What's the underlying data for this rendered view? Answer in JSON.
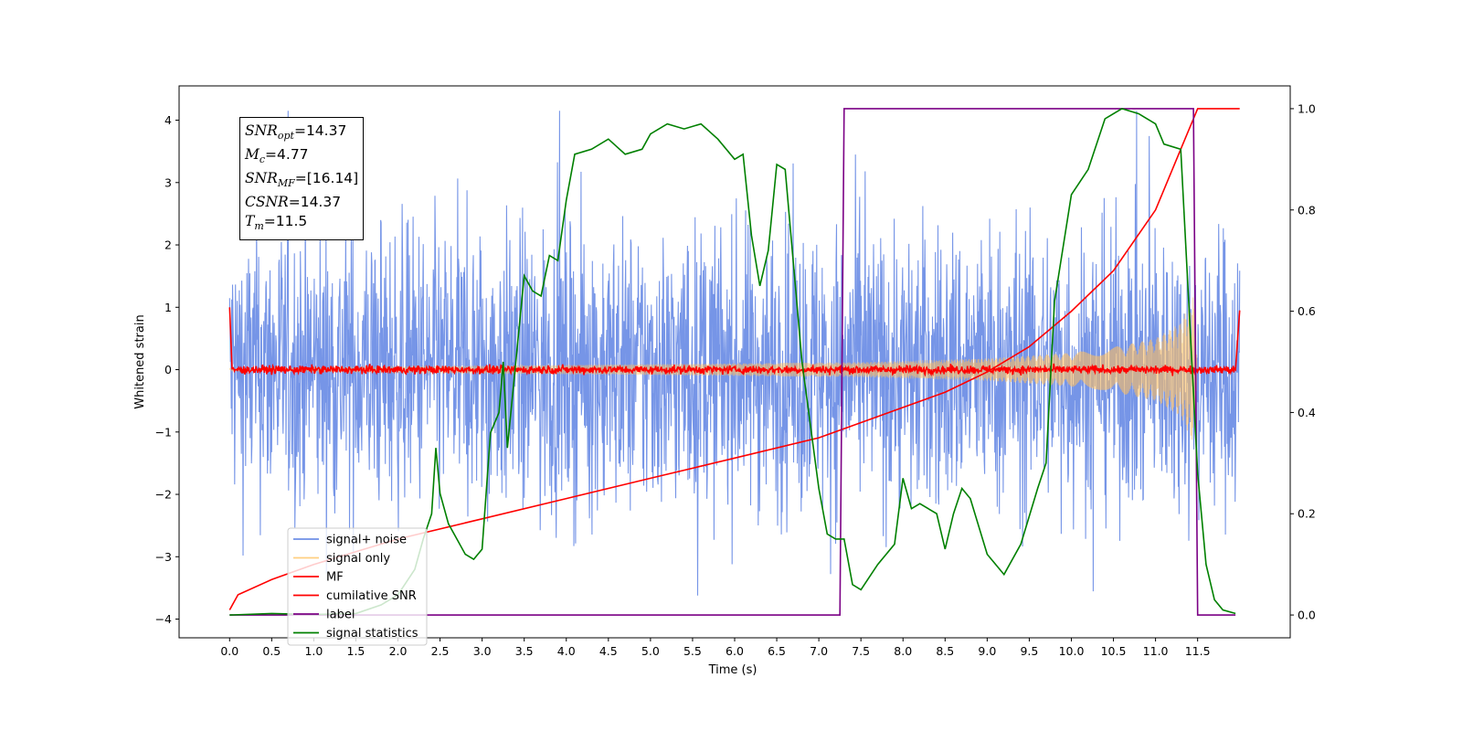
{
  "chart_data": {
    "type": "line",
    "xlabel": "Time (s)",
    "ylabel": "Whitened strain",
    "xlim": [
      -0.6,
      12.6
    ],
    "ylim": [
      -4.3,
      4.55
    ],
    "y2lim": [
      -0.045,
      1.045
    ],
    "xticks": [
      "0.0",
      "0.5",
      "1.0",
      "1.5",
      "2.0",
      "2.5",
      "3.0",
      "3.5",
      "4.0",
      "4.5",
      "5.0",
      "5.5",
      "6.0",
      "6.5",
      "7.0",
      "7.5",
      "8.0",
      "8.5",
      "9.0",
      "9.5",
      "10.0",
      "10.5",
      "11.0",
      "11.5"
    ],
    "yticks": [
      "−4",
      "−3",
      "−2",
      "−1",
      "0",
      "1",
      "2",
      "3",
      "4"
    ],
    "y2ticks": [
      "0.0",
      "0.2",
      "0.4",
      "0.6",
      "0.8",
      "1.0"
    ],
    "annotation": {
      "snr_opt": "SNR",
      "snr_opt_sub": "opt",
      "snr_opt_val": "=14.37",
      "mc": "M",
      "mc_sub": "c",
      "mc_val": "=4.77",
      "snr_mf": "SNR",
      "snr_mf_sub": "MF",
      "snr_mf_val": "=[16.14]",
      "csnr": "CSNR",
      "csnr_val": "=14.37",
      "tm": "T",
      "tm_sub": "m",
      "tm_val": "=11.5"
    },
    "legend_position": "lower-left",
    "series": [
      {
        "name": "signal+ noise",
        "color": "#6f8fe6",
        "kind": "noise",
        "envelope": [
          [
            0.0,
            2.0
          ],
          [
            12.0,
            2.0
          ]
        ]
      },
      {
        "name": "signal only",
        "color": "#ffbf60",
        "kind": "chirp",
        "envelope": [
          [
            0.0,
            0.02
          ],
          [
            7.5,
            0.12
          ],
          [
            9.0,
            0.18
          ],
          [
            10.0,
            0.27
          ],
          [
            10.5,
            0.36
          ],
          [
            11.0,
            0.5
          ],
          [
            11.3,
            0.75
          ],
          [
            11.45,
            1.2
          ],
          [
            11.5,
            0.0
          ]
        ]
      },
      {
        "name": "MF",
        "color": "#ff0000",
        "kind": "mf",
        "points": [
          [
            0.0,
            1.0
          ],
          [
            0.05,
            0.0
          ],
          [
            11.95,
            0.0
          ],
          [
            12.0,
            0.95
          ]
        ]
      },
      {
        "name": "cumilative SNR",
        "color": "#ff0000",
        "axis": "right",
        "points": [
          [
            0.0,
            0.01
          ],
          [
            0.1,
            0.04
          ],
          [
            0.5,
            0.07
          ],
          [
            1.0,
            0.1
          ],
          [
            2.0,
            0.15
          ],
          [
            3.0,
            0.19
          ],
          [
            4.0,
            0.23
          ],
          [
            5.0,
            0.27
          ],
          [
            6.0,
            0.31
          ],
          [
            7.0,
            0.35
          ],
          [
            7.5,
            0.38
          ],
          [
            8.0,
            0.41
          ],
          [
            8.5,
            0.44
          ],
          [
            9.0,
            0.48
          ],
          [
            9.5,
            0.53
          ],
          [
            10.0,
            0.6
          ],
          [
            10.5,
            0.68
          ],
          [
            11.0,
            0.8
          ],
          [
            11.3,
            0.92
          ],
          [
            11.45,
            0.98
          ],
          [
            11.5,
            1.0
          ],
          [
            12.0,
            1.0
          ]
        ]
      },
      {
        "name": "label",
        "color": "#7b0085",
        "axis": "right",
        "points": [
          [
            0.0,
            0.0
          ],
          [
            7.25,
            0.0
          ],
          [
            7.3,
            1.0
          ],
          [
            11.45,
            1.0
          ],
          [
            11.5,
            0.0
          ],
          [
            11.95,
            0.0
          ]
        ]
      },
      {
        "name": "signal statistics",
        "color": "#008000",
        "axis": "right",
        "points": [
          [
            0.0,
            0.0
          ],
          [
            0.5,
            0.003
          ],
          [
            1.0,
            0.001
          ],
          [
            1.5,
            0.003
          ],
          [
            1.8,
            0.02
          ],
          [
            2.0,
            0.04
          ],
          [
            2.2,
            0.09
          ],
          [
            2.3,
            0.15
          ],
          [
            2.4,
            0.2
          ],
          [
            2.45,
            0.33
          ],
          [
            2.5,
            0.24
          ],
          [
            2.6,
            0.18
          ],
          [
            2.7,
            0.15
          ],
          [
            2.8,
            0.12
          ],
          [
            2.9,
            0.11
          ],
          [
            3.0,
            0.13
          ],
          [
            3.1,
            0.36
          ],
          [
            3.2,
            0.4
          ],
          [
            3.25,
            0.5
          ],
          [
            3.3,
            0.33
          ],
          [
            3.5,
            0.67
          ],
          [
            3.6,
            0.64
          ],
          [
            3.7,
            0.63
          ],
          [
            3.8,
            0.71
          ],
          [
            3.9,
            0.7
          ],
          [
            4.0,
            0.82
          ],
          [
            4.1,
            0.91
          ],
          [
            4.3,
            0.92
          ],
          [
            4.5,
            0.94
          ],
          [
            4.7,
            0.91
          ],
          [
            4.9,
            0.92
          ],
          [
            5.0,
            0.95
          ],
          [
            5.2,
            0.97
          ],
          [
            5.4,
            0.96
          ],
          [
            5.6,
            0.97
          ],
          [
            5.8,
            0.94
          ],
          [
            6.0,
            0.9
          ],
          [
            6.1,
            0.91
          ],
          [
            6.2,
            0.75
          ],
          [
            6.3,
            0.65
          ],
          [
            6.4,
            0.72
          ],
          [
            6.5,
            0.89
          ],
          [
            6.6,
            0.88
          ],
          [
            6.8,
            0.5
          ],
          [
            7.0,
            0.25
          ],
          [
            7.1,
            0.16
          ],
          [
            7.2,
            0.15
          ],
          [
            7.3,
            0.15
          ],
          [
            7.4,
            0.06
          ],
          [
            7.5,
            0.05
          ],
          [
            7.7,
            0.1
          ],
          [
            7.9,
            0.14
          ],
          [
            8.0,
            0.27
          ],
          [
            8.1,
            0.21
          ],
          [
            8.2,
            0.22
          ],
          [
            8.4,
            0.2
          ],
          [
            8.5,
            0.13
          ],
          [
            8.6,
            0.2
          ],
          [
            8.7,
            0.25
          ],
          [
            8.8,
            0.23
          ],
          [
            9.0,
            0.12
          ],
          [
            9.2,
            0.08
          ],
          [
            9.4,
            0.14
          ],
          [
            9.6,
            0.25
          ],
          [
            9.7,
            0.3
          ],
          [
            9.8,
            0.62
          ],
          [
            10.0,
            0.83
          ],
          [
            10.2,
            0.88
          ],
          [
            10.4,
            0.98
          ],
          [
            10.6,
            1.0
          ],
          [
            10.8,
            0.99
          ],
          [
            11.0,
            0.97
          ],
          [
            11.1,
            0.93
          ],
          [
            11.3,
            0.92
          ],
          [
            11.5,
            0.28
          ],
          [
            11.6,
            0.1
          ],
          [
            11.7,
            0.03
          ],
          [
            11.8,
            0.01
          ],
          [
            11.95,
            0.003
          ]
        ]
      }
    ]
  }
}
